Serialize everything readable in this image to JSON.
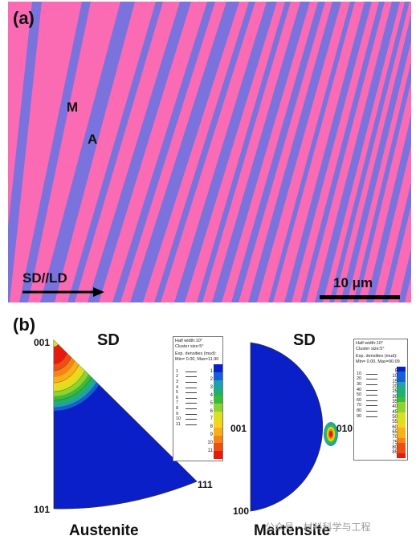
{
  "panel_a": {
    "label": "(a)",
    "phase_labels": {
      "martensite": "M",
      "austenite": "A"
    },
    "direction_label": "SD//LD",
    "scale_bar_label": "10 μm",
    "colors": {
      "martensite": "#fa6bb4",
      "austenite": "#7a72dd"
    }
  },
  "panel_b": {
    "label": "(b)",
    "austenite": {
      "title": "SD",
      "phase_name": "Austenite",
      "poles": {
        "top": "001",
        "bottom_left": "101",
        "right": "111"
      },
      "legend": {
        "header": [
          "Half width:10°",
          "Cluster size:5°",
          "Exp. densities (mud):",
          "Min= 0.00, Max=11.90"
        ],
        "levels": [
          "1",
          "2",
          "3",
          "4",
          "5",
          "6",
          "7",
          "8",
          "9",
          "10",
          "11"
        ],
        "scale_ticks": [
          "1",
          "2",
          "3",
          "4",
          "5",
          "6",
          "7",
          "8",
          "9",
          "10",
          "11"
        ]
      }
    },
    "martensite": {
      "title": "SD",
      "phase_name": "Martensite",
      "poles": {
        "left": "001",
        "bottom": "100",
        "right": "010"
      },
      "legend": {
        "header": [
          "Half width:10°",
          "Cluster size:5°",
          "Exp. densities (mud):",
          "Min= 0.00, Max=90.09"
        ],
        "levels": [
          "10",
          "20",
          "30",
          "40",
          "50",
          "60",
          "70",
          "80",
          "90"
        ],
        "scale_ticks": [
          "5",
          "10",
          "15",
          "20",
          "25",
          "30",
          "35",
          "40",
          "45",
          "50",
          "55",
          "60",
          "65",
          "70",
          "75",
          "80",
          "85"
        ]
      }
    }
  },
  "watermark": "公众号 · 材料科学与工程"
}
